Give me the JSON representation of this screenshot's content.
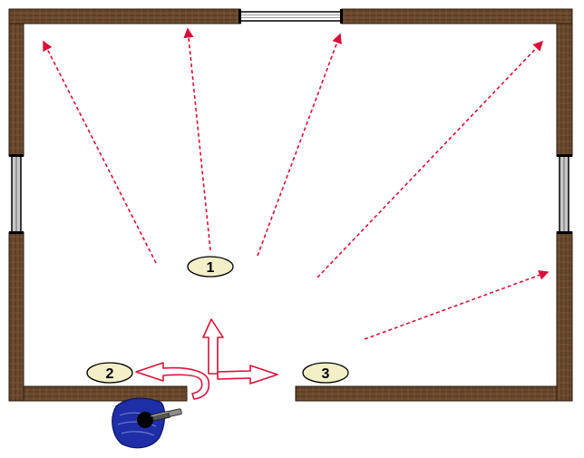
{
  "room": {
    "markers": [
      {
        "id": "1",
        "label": "1"
      },
      {
        "id": "2",
        "label": "2"
      },
      {
        "id": "3",
        "label": "3"
      }
    ]
  },
  "colors": {
    "wall_fill": "#6b4a2e",
    "wall_edge": "#2a1a0d",
    "window_glass": "#c8c8c8",
    "window_frame": "#000000",
    "arrow_red": "#d8113a",
    "marker_fill": "#f3f0c8",
    "marker_stroke": "#000000",
    "figure_blue": "#1d2ea6",
    "figure_head": "#000000"
  },
  "icons": {
    "figure": "person-with-flashlight-icon"
  }
}
